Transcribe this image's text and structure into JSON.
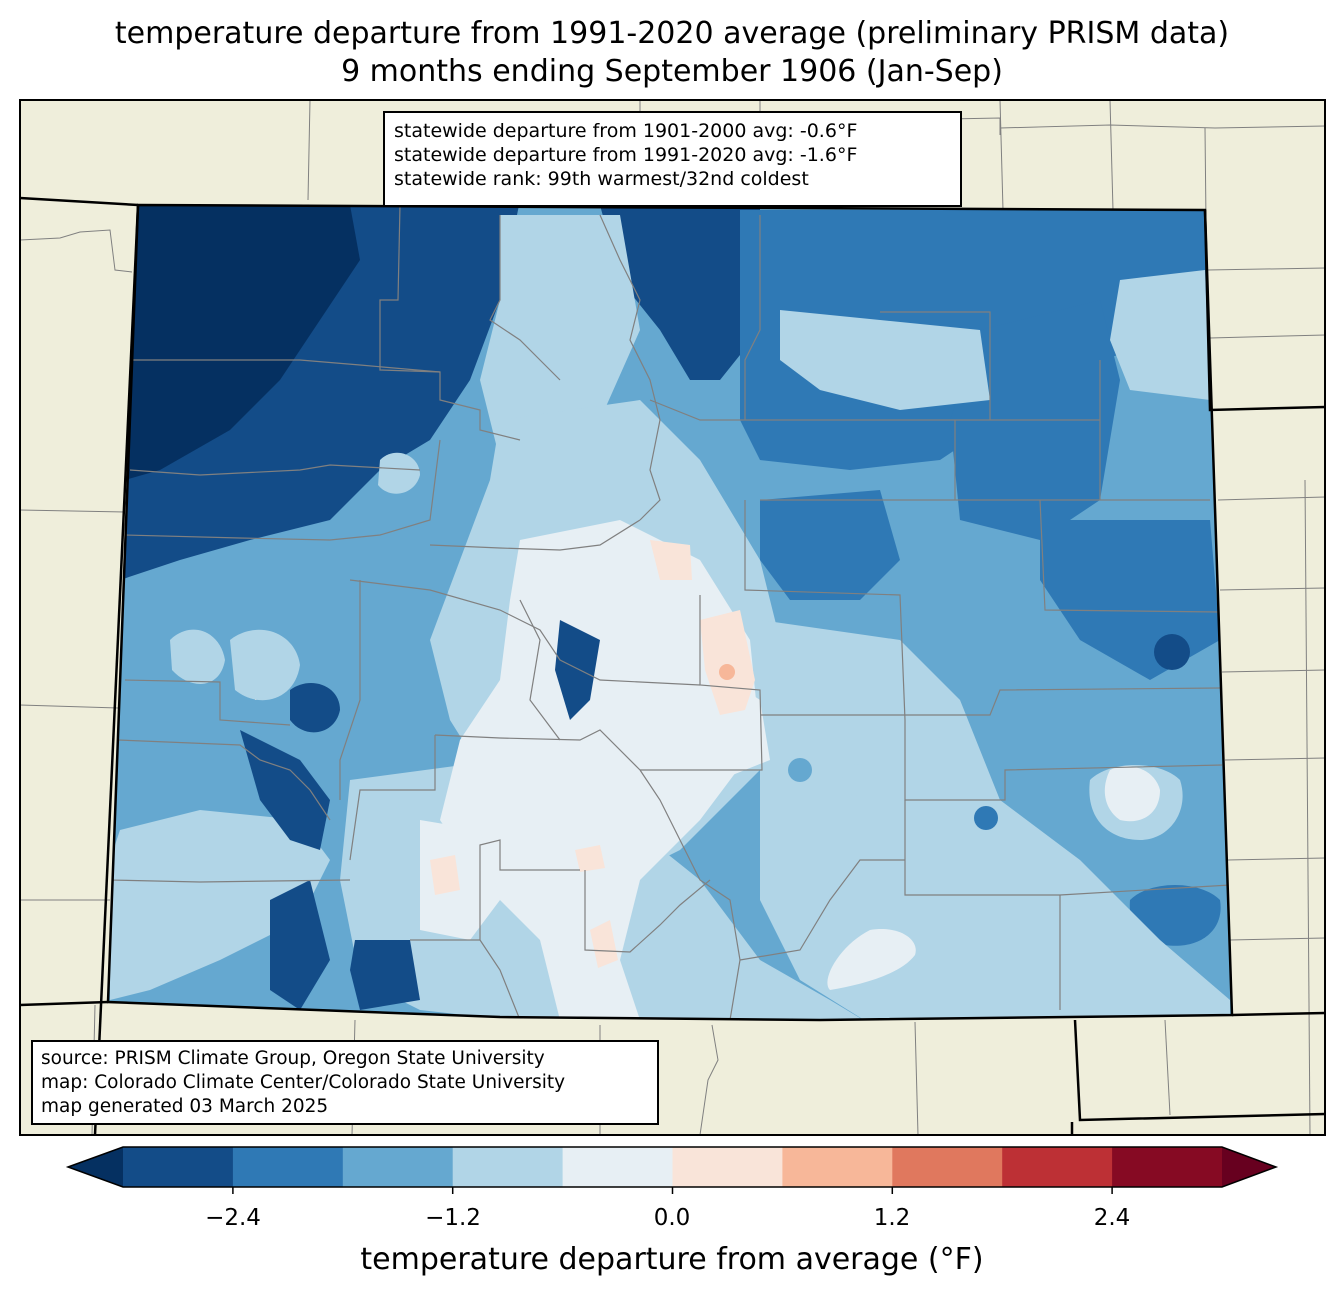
{
  "title_line1": "temperature departure from 1991-2020 average (preliminary PRISM data)",
  "title_line2": "9 months ending September 1906 (Jan-Sep)",
  "stats": {
    "line1": "statewide departure from 1901-2000 avg: -0.6°F",
    "line2": "statewide departure from 1991-2020 avg: -1.6°F",
    "line3": "statewide rank: 99th warmest/32nd coldest"
  },
  "source": {
    "line1": "source: PRISM Climate Group, Oregon State University",
    "line2": "map: Colorado Climate Center/Colorado State University",
    "line3": "map generated 03 March 2025"
  },
  "colorbar": {
    "label": "temperature departure from average (°F)",
    "ticks": [
      "−2.4",
      "−1.2",
      "0.0",
      "1.2",
      "2.4"
    ],
    "bounds": [
      -3.0,
      -2.4,
      -1.8,
      -1.2,
      -0.6,
      0.0,
      0.6,
      1.2,
      1.8,
      2.4,
      3.0
    ],
    "colors": [
      "#053061",
      "#134c88",
      "#2f79b5",
      "#65a8d0",
      "#b1d5e7",
      "#e7eff4",
      "#f9e4d9",
      "#f7b799",
      "#e0785e",
      "#bd3035",
      "#860a23",
      "#67001f"
    ]
  },
  "map_colors": {
    "land": "#efeedb",
    "county_lines": "#808080",
    "state_lines": "#000000"
  }
}
